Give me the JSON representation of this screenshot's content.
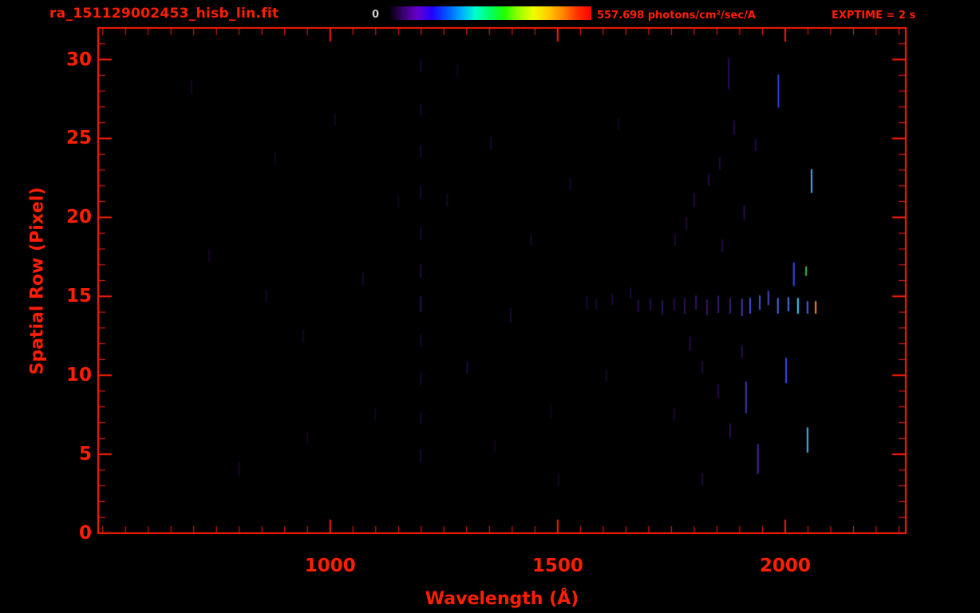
{
  "header": {
    "title": "ra_151129002453_hisb_lin.fit",
    "colorbar_min_label": "0",
    "colorbar_max_label": "557.698 photons/cm²/sec/A",
    "exptime_label": "EXPTIME = 2 s"
  },
  "axes": {
    "x_label": "Wavelength (Å)",
    "y_label": "Spatial Row (Pixel)"
  },
  "chart_data": {
    "type": "heatmap",
    "title": "ra_151129002453_hisb_lin.fit",
    "xlabel": "Wavelength (Å)",
    "ylabel": "Spatial Row (Pixel)",
    "xlim": [
      490,
      2265
    ],
    "ylim": [
      0,
      32
    ],
    "x_ticks": [
      1000,
      1500,
      2000
    ],
    "y_ticks": [
      0,
      5,
      10,
      15,
      20,
      25,
      30
    ],
    "x_minor_step": 50,
    "y_minor_step": 1,
    "grid": false,
    "axis_color": "#ff1e00",
    "background_color": "#000000",
    "exptime_seconds": 2,
    "colorbar": {
      "min": 0,
      "max": 557.698,
      "units": "photons/cm²/sec/A",
      "position": "top-center",
      "palette": [
        "#000000",
        "#3a0070",
        "#6600cc",
        "#2200ff",
        "#0055ff",
        "#00aaff",
        "#00ffcc",
        "#00ff66",
        "#22ff00",
        "#99ff00",
        "#eeff00",
        "#ffcc00",
        "#ff8800",
        "#ff3300",
        "#ff0000"
      ]
    },
    "features_note": "vertical emission segments: [wavelength_A, row_center, row_extent, color]",
    "features": [
      [
        1985,
        28.0,
        2.1,
        "#3040e0"
      ],
      [
        2058,
        22.3,
        1.5,
        "#35b0ff"
      ],
      [
        2019,
        16.4,
        1.5,
        "#3646ff"
      ],
      [
        2046,
        16.6,
        0.6,
        "#3fbf4f"
      ],
      [
        2002,
        10.3,
        1.6,
        "#3a4af0"
      ],
      [
        1914,
        8.6,
        2.0,
        "#4a30b0"
      ],
      [
        2049,
        5.9,
        1.6,
        "#45b8ff"
      ],
      [
        1940,
        4.7,
        1.9,
        "#4a22a0"
      ],
      [
        1876,
        29.1,
        2.0,
        "#2e0a60"
      ],
      [
        1677,
        14.4,
        0.8,
        "#2a0a50"
      ],
      [
        1704,
        14.5,
        0.8,
        "#2a0a50"
      ],
      [
        1730,
        14.3,
        0.9,
        "#31125e"
      ],
      [
        1756,
        14.5,
        0.8,
        "#2a0a50"
      ],
      [
        1779,
        14.4,
        1.0,
        "#31125e"
      ],
      [
        1804,
        14.6,
        0.9,
        "#38156a"
      ],
      [
        1828,
        14.3,
        1.0,
        "#38156a"
      ],
      [
        1853,
        14.5,
        1.1,
        "#3d1880"
      ],
      [
        1879,
        14.4,
        1.0,
        "#3d1880"
      ],
      [
        1905,
        14.3,
        1.1,
        "#4638a8"
      ],
      [
        1923,
        14.4,
        1.0,
        "#4050e0"
      ],
      [
        1944,
        14.6,
        0.9,
        "#4050e0"
      ],
      [
        1963,
        14.9,
        0.9,
        "#4048d0"
      ],
      [
        1984,
        14.4,
        1.0,
        "#4868e8"
      ],
      [
        2007,
        14.5,
        0.9,
        "#4878f0"
      ],
      [
        2028,
        14.4,
        1.0,
        "#40d0ff"
      ],
      [
        2049,
        14.3,
        0.8,
        "#5060e0"
      ],
      [
        2067,
        14.3,
        0.8,
        "#ff8c28"
      ],
      [
        1660,
        15.2,
        0.7,
        "#22083e"
      ],
      [
        1620,
        14.8,
        0.7,
        "#22083e"
      ],
      [
        1585,
        14.5,
        0.7,
        "#1d0634"
      ],
      [
        1800,
        21.1,
        0.9,
        "#26084a"
      ],
      [
        1832,
        22.4,
        0.8,
        "#26084a"
      ],
      [
        1856,
        23.4,
        0.8,
        "#22083e"
      ],
      [
        1888,
        25.7,
        0.9,
        "#26084a"
      ],
      [
        1783,
        19.6,
        0.8,
        "#22083e"
      ],
      [
        1758,
        18.6,
        0.8,
        "#1d0634"
      ],
      [
        1862,
        18.2,
        0.8,
        "#26084a"
      ],
      [
        1910,
        20.3,
        0.9,
        "#2c0c55"
      ],
      [
        1935,
        24.6,
        0.8,
        "#26084a"
      ],
      [
        1791,
        12.0,
        0.9,
        "#26084a"
      ],
      [
        1818,
        10.5,
        0.8,
        "#22083e"
      ],
      [
        1853,
        9.0,
        0.9,
        "#26084a"
      ],
      [
        1879,
        6.5,
        0.9,
        "#2c0c55"
      ],
      [
        1818,
        3.4,
        0.8,
        "#22083e"
      ],
      [
        1756,
        7.5,
        0.8,
        "#1d0634"
      ],
      [
        1905,
        11.5,
        0.8,
        "#2c0c55"
      ],
      [
        1199,
        29.6,
        0.8,
        "#1c0638"
      ],
      [
        1199,
        26.8,
        0.8,
        "#1c0638"
      ],
      [
        1199,
        24.2,
        0.8,
        "#1c0638"
      ],
      [
        1199,
        21.6,
        0.8,
        "#1c0638"
      ],
      [
        1199,
        19.0,
        0.8,
        "#1c0638"
      ],
      [
        1199,
        16.6,
        0.9,
        "#220a44"
      ],
      [
        1199,
        14.5,
        1.0,
        "#2a0f52"
      ],
      [
        1199,
        12.2,
        0.8,
        "#1c0638"
      ],
      [
        1199,
        9.8,
        0.8,
        "#1c0638"
      ],
      [
        1199,
        7.3,
        0.8,
        "#1c0638"
      ],
      [
        1199,
        4.9,
        0.8,
        "#1c0638"
      ],
      [
        695,
        28.3,
        0.9,
        "#190530"
      ],
      [
        734,
        17.6,
        0.8,
        "#160426"
      ],
      [
        800,
        4.1,
        0.9,
        "#190530"
      ],
      [
        879,
        23.7,
        0.8,
        "#160426"
      ],
      [
        941,
        12.5,
        0.8,
        "#190530"
      ],
      [
        1011,
        26.2,
        0.8,
        "#160426"
      ],
      [
        1072,
        16.1,
        0.8,
        "#190530"
      ],
      [
        1099,
        7.5,
        0.8,
        "#160426"
      ],
      [
        1257,
        21.1,
        0.8,
        "#190530"
      ],
      [
        1301,
        10.5,
        0.8,
        "#1f0740"
      ],
      [
        1353,
        24.7,
        0.8,
        "#190530"
      ],
      [
        1397,
        13.8,
        0.9,
        "#1f0740"
      ],
      [
        1441,
        18.6,
        0.8,
        "#190530"
      ],
      [
        1485,
        7.7,
        0.8,
        "#160426"
      ],
      [
        1528,
        22.1,
        0.8,
        "#190530"
      ],
      [
        1564,
        14.6,
        0.8,
        "#1f0740"
      ],
      [
        1607,
        10.0,
        0.8,
        "#190530"
      ],
      [
        1634,
        25.9,
        0.8,
        "#160426"
      ],
      [
        1502,
        3.4,
        0.8,
        "#190530"
      ],
      [
        1362,
        5.5,
        0.8,
        "#160426"
      ],
      [
        1280,
        29.3,
        0.8,
        "#160426"
      ],
      [
        1150,
        21.0,
        0.8,
        "#160426"
      ],
      [
        950,
        6.0,
        0.8,
        "#160426"
      ],
      [
        860,
        15.0,
        0.8,
        "#190530"
      ]
    ]
  }
}
